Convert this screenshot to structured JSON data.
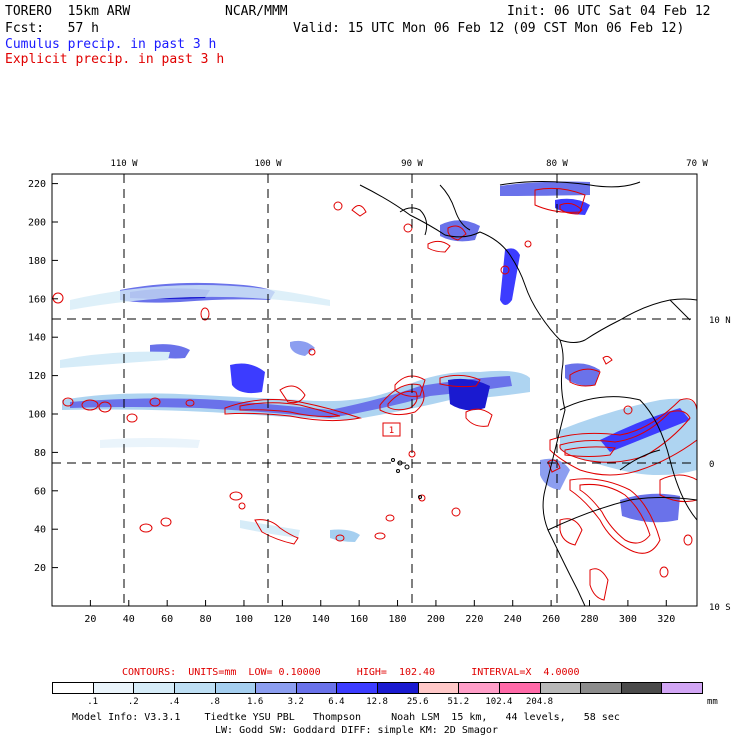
{
  "header": {
    "model": "TORERO  15km ARW",
    "org": "NCAR/MMM",
    "init": "Init: 06 UTC Sat 04 Feb 12",
    "fcst": "Fcst:   57 h",
    "valid": "Valid: 15 UTC Mon 06 Feb 12 (09 CST Mon 06 Feb 12)",
    "line_blue": "Cumulus precip. in past 3 h",
    "line_red": "Explicit precip. in past 3 h"
  },
  "axes": {
    "top_lon_labels": [
      "110 W",
      "100 W",
      "90 W",
      "80 W",
      "70 W"
    ],
    "right_lat_labels": [
      "10 N",
      "0",
      "10 S"
    ],
    "left_ticks": [
      "220",
      "200",
      "180",
      "160",
      "140",
      "120",
      "100",
      "80",
      "60",
      "40",
      "20"
    ],
    "bottom_ticks": [
      "20",
      "40",
      "60",
      "80",
      "100",
      "120",
      "140",
      "160",
      "180",
      "200",
      "220",
      "240",
      "260",
      "280",
      "300",
      "320"
    ]
  },
  "station_label": "1",
  "contours": {
    "text": "CONTOURS:  UNITS=mm  LOW= 0.10000      HIGH=  102.40      INTERVAL=X  4.0000"
  },
  "colorbar": {
    "colors": [
      "#ffffff",
      "#eaf4fb",
      "#d6ecf8",
      "#bedff4",
      "#a5cff0",
      "#8c9ef0",
      "#6a72ea",
      "#3c3cff",
      "#1a1ad0",
      "#ffc8c8",
      "#ff9ec8",
      "#ff6aa8",
      "#b8b8b8",
      "#8c8c8c",
      "#4a4a4a",
      "#d2a6f5"
    ],
    "labels": [
      ".1",
      ".2",
      ".4",
      ".8",
      "1.6",
      "3.2",
      "6.4",
      "12.8",
      "25.6",
      "51.2",
      "102.4",
      "204.8"
    ],
    "unit": "mm"
  },
  "footer": {
    "line1": "Model Info: V3.3.1    Tiedtke YSU PBL   Thompson     Noah LSM  15 km,   44 levels,   58 sec",
    "line2": "LW: Godd SW: Goddard DIFF: simple KM: 2D Smagor"
  }
}
